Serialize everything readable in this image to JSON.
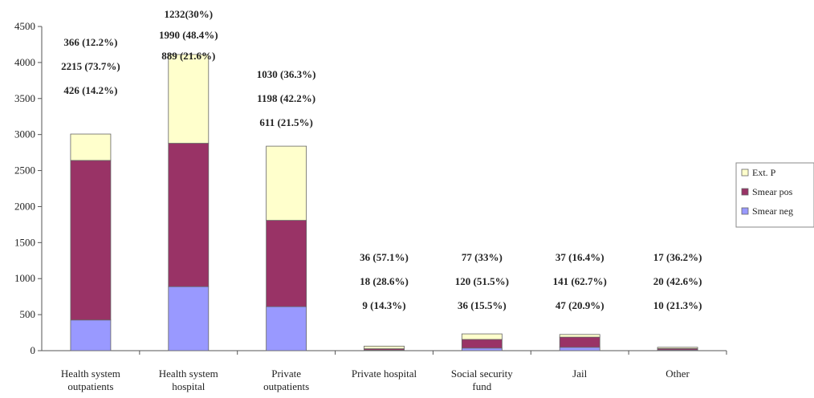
{
  "chart_data": {
    "type": "bar",
    "stacked": true,
    "title": "",
    "xlabel": "",
    "ylabel": "",
    "ylim": [
      0,
      4500
    ],
    "yticks": [
      0,
      500,
      1000,
      1500,
      2000,
      2500,
      3000,
      3500,
      4000,
      4500
    ],
    "grid": false,
    "legend_position": "right",
    "categories": [
      [
        "Health system",
        "outpatients"
      ],
      [
        "Health system",
        "hospital"
      ],
      [
        "Private",
        "outpatients"
      ],
      [
        "Private hospital"
      ],
      [
        "Social security",
        "fund"
      ],
      [
        "Jail"
      ],
      [
        "Other"
      ]
    ],
    "series": [
      {
        "name": "Smear neg",
        "color": "#9999ff",
        "values": [
          426,
          889,
          611,
          9,
          36,
          47,
          10
        ]
      },
      {
        "name": "Smear pos",
        "color": "#993366",
        "values": [
          2215,
          1990,
          1198,
          18,
          120,
          141,
          20
        ]
      },
      {
        "name": "Ext. P",
        "color": "#ffffcc",
        "values": [
          366,
          1232,
          1030,
          36,
          77,
          37,
          17
        ]
      }
    ],
    "legend_order": [
      "Ext. P",
      "Smear pos",
      "Smear neg"
    ],
    "annotations": [
      [
        "366 (12.2%)",
        "2215 (73.7%)",
        "426 (14.2%)"
      ],
      [
        "1232(30%)",
        "1990 (48.4%)",
        "889 (21.6%)"
      ],
      [
        "1030 (36.3%)",
        "1198 (42.2%)",
        "611 (21.5%)"
      ],
      [
        "36 (57.1%)",
        "18 (28.6%)",
        "9 (14.3%)"
      ],
      [
        "77 (33%)",
        "120 (51.5%)",
        "36 (15.5%)"
      ],
      [
        "37 (16.4%)",
        "141 (62.7%)",
        "47 (20.9%)"
      ],
      [
        "17 (36.2%)",
        "20 (42.6%)",
        "10 (21.3%)"
      ]
    ]
  }
}
